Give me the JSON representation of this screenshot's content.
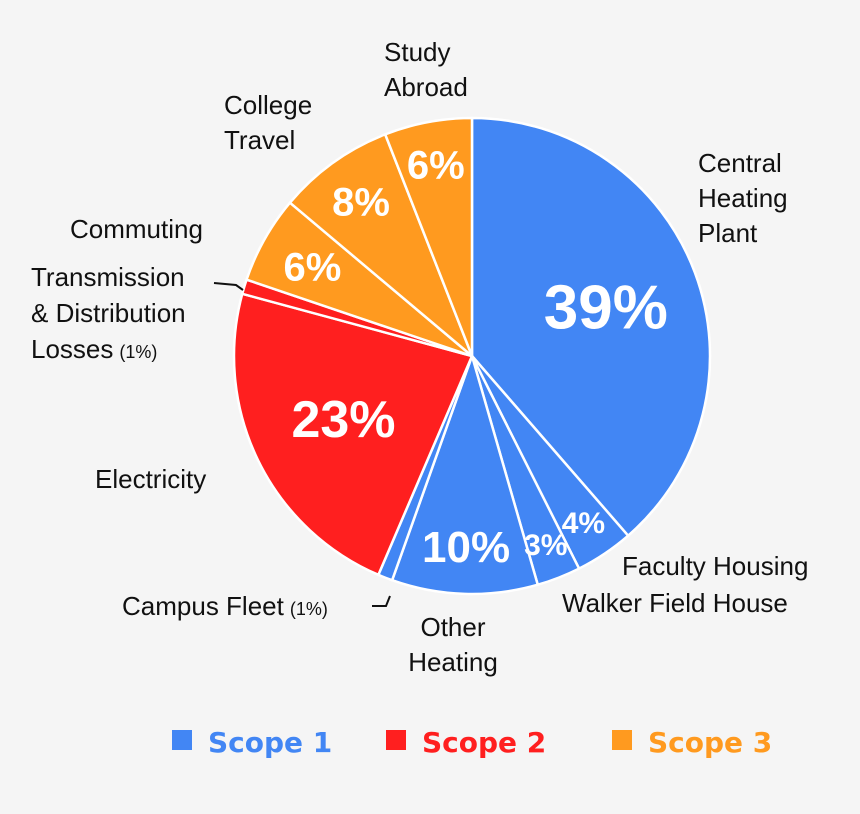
{
  "chart_data": {
    "type": "pie",
    "slices": [
      {
        "name": "Central Heating Plant",
        "label_lines": [
          "Central",
          "Heating",
          "Plant"
        ],
        "value": 39,
        "value_label": "39%",
        "scope": "Scope 1"
      },
      {
        "name": "Faculty Housing",
        "label_lines": [
          "Faculty Housing"
        ],
        "value": 4,
        "value_label": "4%",
        "scope": "Scope 1"
      },
      {
        "name": "Walker Field House",
        "label_lines": [
          "Walker Field House"
        ],
        "value": 3,
        "value_label": "3%",
        "scope": "Scope 1"
      },
      {
        "name": "Other Heating",
        "label_lines": [
          "Other",
          "Heating"
        ],
        "value": 10,
        "value_label": "10%",
        "scope": "Scope 1"
      },
      {
        "name": "Campus Fleet",
        "label_lines": [
          "Campus Fleet"
        ],
        "suffix": "(1%)",
        "value": 1,
        "value_label": "",
        "scope": "Scope 1"
      },
      {
        "name": "Electricity",
        "label_lines": [
          "Electricity"
        ],
        "value": 23,
        "value_label": "23%",
        "scope": "Scope 2"
      },
      {
        "name": "Transmission & Distribution Losses",
        "label_lines": [
          "Transmission",
          "& Distribution",
          "Losses"
        ],
        "suffix": "(1%)",
        "value": 1,
        "value_label": "",
        "scope": "Scope 2"
      },
      {
        "name": "Commuting",
        "label_lines": [
          "Commuting"
        ],
        "value": 6,
        "value_label": "6%",
        "scope": "Scope 3"
      },
      {
        "name": "College Travel",
        "label_lines": [
          "College",
          "Travel"
        ],
        "value": 8,
        "value_label": "8%",
        "scope": "Scope 3"
      },
      {
        "name": "Study Abroad",
        "label_lines": [
          "Study",
          "Abroad"
        ],
        "value": 6,
        "value_label": "6%",
        "scope": "Scope 3"
      }
    ],
    "legend": [
      {
        "name": "Scope 1",
        "color": "#4286f4"
      },
      {
        "name": "Scope 2",
        "color": "#ff1f1f"
      },
      {
        "name": "Scope 3",
        "color": "#ff9a1f"
      }
    ],
    "legend_position": "bottom"
  },
  "colors": {
    "scope1": "#4286f4",
    "scope2": "#ff1f1f",
    "scope3": "#ff9a1f",
    "background": "#f5f5f5"
  }
}
